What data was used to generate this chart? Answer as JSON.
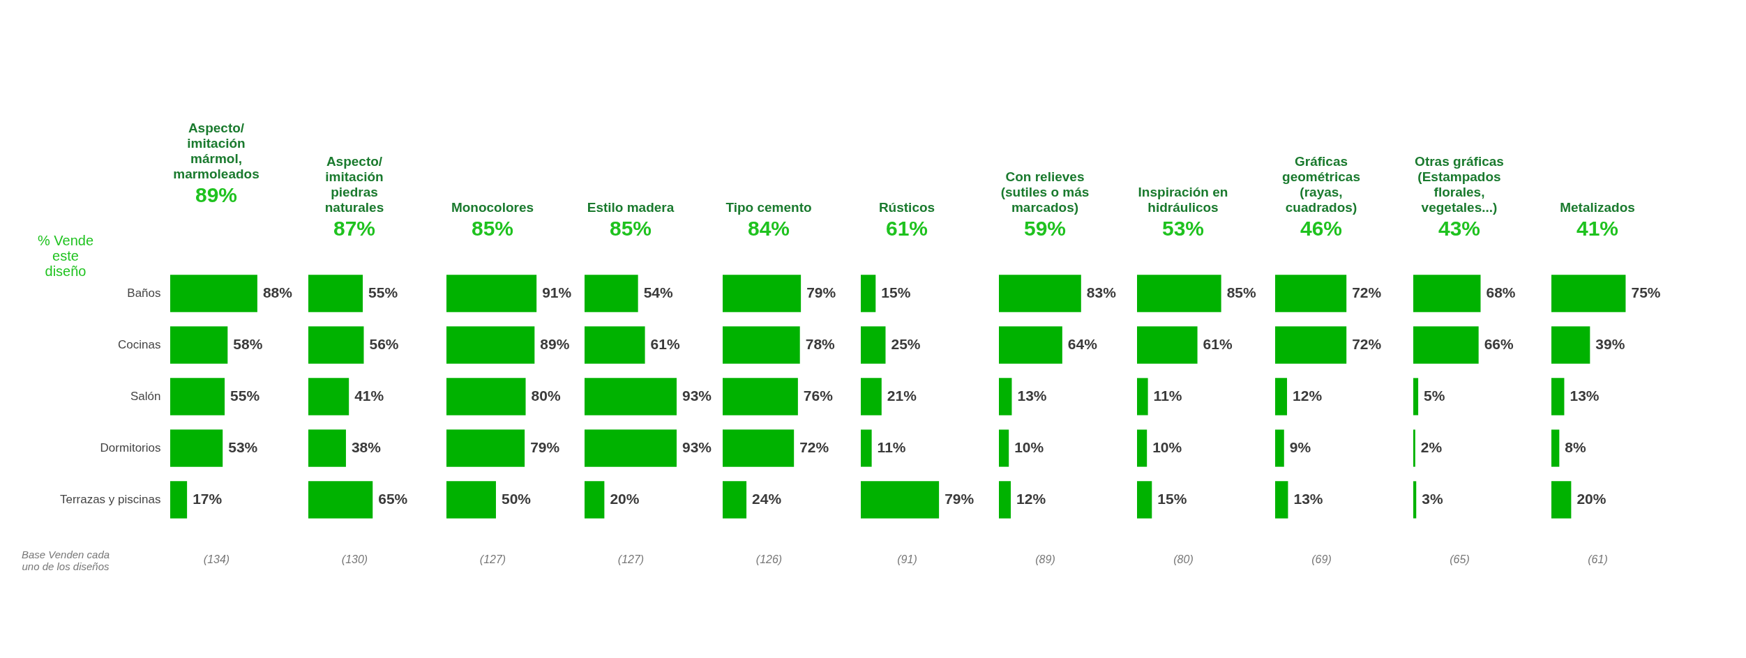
{
  "chart_data": [
    {
      "type": "bar",
      "orientation": "horizontal",
      "title": "Aspecto/\nimitación\nmármol,\nmarmoleados",
      "subtitle": "89%",
      "xlabel": "(134)",
      "categories": [
        "Baños",
        "Cocinas",
        "Salón",
        "Dormitorios",
        "Terrazas y piscinas"
      ],
      "values": [
        88,
        58,
        55,
        53,
        17
      ],
      "value_labels": [
        "88%",
        "58%",
        "55%",
        "53%",
        "17%"
      ],
      "color": "#00b200",
      "tick_labels": "y",
      "annotations": [
        "% Vende\neste\ndiseño",
        "Base Venden cada\nuno de los diseños"
      ]
    },
    {
      "type": "bar",
      "orientation": "horizontal",
      "title": "Aspecto/\nimitación\npiedras\nnaturales",
      "subtitle": "87%",
      "xlabel": "(130)",
      "categories": [
        null,
        null,
        null,
        null,
        null
      ],
      "values": [
        55,
        56,
        41,
        38,
        65
      ],
      "value_labels": [
        "55%",
        "56%",
        "41%",
        "38%",
        "65%"
      ],
      "color": "#00b200",
      "tick_labels": false
    },
    {
      "type": "bar",
      "orientation": "horizontal",
      "title": "Monocolores",
      "subtitle": "85%",
      "xlabel": "(127)",
      "categories": [
        null,
        null,
        null,
        null,
        null
      ],
      "values": [
        91,
        89,
        80,
        79,
        50
      ],
      "value_labels": [
        "91%",
        "89%",
        "80%",
        "79%",
        "50%"
      ],
      "color": "#00b200",
      "tick_labels": false
    },
    {
      "type": "bar",
      "orientation": "horizontal",
      "title": "Estilo madera",
      "subtitle": "85%",
      "xlabel": "(127)",
      "categories": [
        null,
        null,
        null,
        null,
        null
      ],
      "values": [
        54,
        61,
        93,
        93,
        20
      ],
      "value_labels": [
        "54%",
        "61%",
        "93%",
        "93%",
        "20%"
      ],
      "color": "#00b200",
      "tick_labels": false
    },
    {
      "type": "bar",
      "orientation": "horizontal",
      "title": "Tipo cemento",
      "subtitle": "84%",
      "xlabel": "(126)",
      "categories": [
        null,
        null,
        null,
        null,
        null
      ],
      "values": [
        79,
        78,
        76,
        72,
        24
      ],
      "value_labels": [
        "79%",
        "78%",
        "76%",
        "72%",
        "24%"
      ],
      "color": "#00b200",
      "tick_labels": false
    },
    {
      "type": "bar",
      "orientation": "horizontal",
      "title": "Rústicos",
      "subtitle": "61%",
      "xlabel": "(91)",
      "categories": [
        null,
        null,
        null,
        null,
        null
      ],
      "values": [
        15,
        25,
        21,
        11,
        79
      ],
      "value_labels": [
        "15%",
        "25%",
        "21%",
        "11%",
        "79%"
      ],
      "color": "#00b200",
      "tick_labels": false
    },
    {
      "type": "bar",
      "orientation": "horizontal",
      "title": "Con relieves\n(sutiles o más\nmarcados)",
      "subtitle": "59%",
      "xlabel": "(89)",
      "categories": [
        null,
        null,
        null,
        null,
        null
      ],
      "values": [
        83,
        64,
        13,
        10,
        12
      ],
      "value_labels": [
        "83%",
        "64%",
        "13%",
        "10%",
        "12%"
      ],
      "color": "#00b200",
      "tick_labels": false
    },
    {
      "type": "bar",
      "orientation": "horizontal",
      "title": "Inspiración en\nhidráulicos",
      "subtitle": "53%",
      "xlabel": "(80)",
      "categories": [
        null,
        null,
        null,
        null,
        null
      ],
      "values": [
        85,
        61,
        11,
        10,
        15
      ],
      "value_labels": [
        "85%",
        "61%",
        "11%",
        "10%",
        "15%"
      ],
      "color": "#00b200",
      "tick_labels": false
    },
    {
      "type": "bar",
      "orientation": "horizontal",
      "title": "Gráficas\ngeométricas\n(rayas,\ncuadrados)",
      "subtitle": "46%",
      "xlabel": "(69)",
      "categories": [
        null,
        null,
        null,
        null,
        null
      ],
      "values": [
        72,
        72,
        12,
        9,
        13
      ],
      "value_labels": [
        "72%",
        "72%",
        "12%",
        "9%",
        "13%"
      ],
      "color": "#00b200",
      "tick_labels": false
    },
    {
      "type": "bar",
      "orientation": "horizontal",
      "title": "Otras gráficas\n(Estampados\nflorales,\nvegetales...)",
      "subtitle": "43%",
      "xlabel": "(65)",
      "categories": [
        null,
        null,
        null,
        null,
        null
      ],
      "values": [
        68,
        66,
        5,
        2,
        3
      ],
      "value_labels": [
        "68%",
        "66%",
        "5%",
        "2%",
        "3%"
      ],
      "color": "#00b200",
      "tick_labels": false
    },
    {
      "type": "bar",
      "orientation": "horizontal",
      "title": "Metalizados",
      "subtitle": "41%",
      "xlabel": "(61)",
      "categories": [
        null,
        null,
        null,
        null,
        null
      ],
      "values": [
        75,
        39,
        13,
        8,
        20
      ],
      "value_labels": [
        "75%",
        "39%",
        "13%",
        "8%",
        "20%"
      ],
      "color": "#00b200",
      "tick_labels": false
    }
  ]
}
